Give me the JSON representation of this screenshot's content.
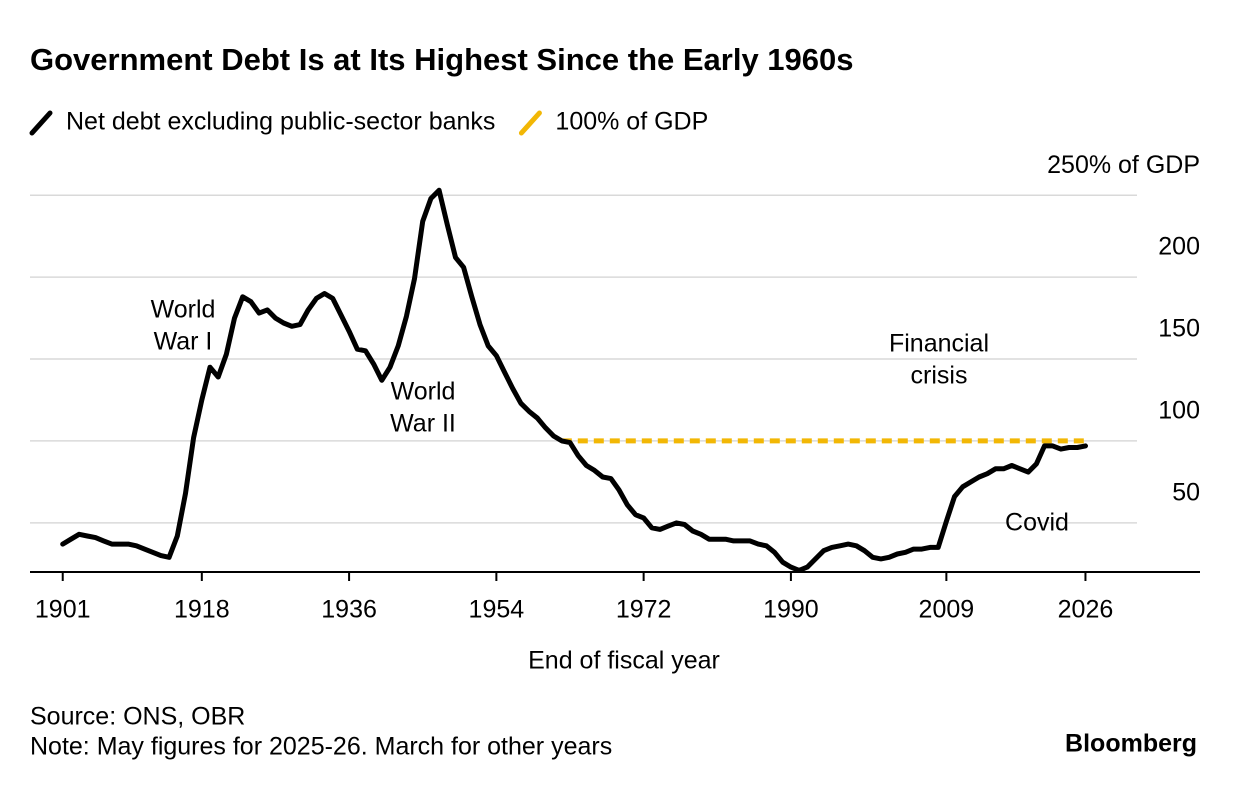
{
  "chart_data": {
    "type": "line",
    "title": "Government Debt Is at Its Highest Since the Early 1960s",
    "x_label": "End of fiscal year",
    "source": "Source: ONS, OBR",
    "note": "Note: May figures for 2025-26. March for other years",
    "brand": "Bloomberg",
    "series": [
      {
        "name": "Net debt excluding public-sector banks",
        "color": "#000000",
        "dashed": false,
        "x": [
          1901,
          1902,
          1903,
          1904,
          1905,
          1906,
          1907,
          1908,
          1909,
          1910,
          1911,
          1912,
          1913,
          1914,
          1915,
          1916,
          1917,
          1918,
          1919,
          1920,
          1921,
          1922,
          1923,
          1924,
          1925,
          1926,
          1927,
          1928,
          1929,
          1930,
          1931,
          1932,
          1933,
          1934,
          1935,
          1936,
          1937,
          1938,
          1939,
          1940,
          1941,
          1942,
          1943,
          1944,
          1945,
          1946,
          1947,
          1948,
          1949,
          1950,
          1951,
          1952,
          1953,
          1954,
          1955,
          1956,
          1957,
          1958,
          1959,
          1960,
          1961,
          1962,
          1963,
          1964,
          1965,
          1966,
          1967,
          1968,
          1969,
          1970,
          1971,
          1972,
          1973,
          1974,
          1975,
          1976,
          1977,
          1978,
          1979,
          1980,
          1981,
          1982,
          1983,
          1984,
          1985,
          1986,
          1987,
          1988,
          1989,
          1990,
          1991,
          1992,
          1993,
          1994,
          1995,
          1996,
          1997,
          1998,
          1999,
          2000,
          2001,
          2002,
          2003,
          2004,
          2005,
          2006,
          2007,
          2008,
          2009,
          2010,
          2011,
          2012,
          2013,
          2014,
          2015,
          2016,
          2017,
          2018,
          2019,
          2020,
          2021,
          2022,
          2023,
          2024,
          2025,
          2026
        ],
        "values": [
          37,
          40,
          43,
          42,
          41,
          39,
          37,
          37,
          37,
          36,
          34,
          32,
          30,
          29,
          42,
          68,
          102,
          125,
          145,
          139,
          153,
          175,
          188,
          185,
          178,
          180,
          175,
          172,
          170,
          171,
          180,
          187,
          190,
          187,
          177,
          167,
          156,
          155,
          147,
          137,
          145,
          158,
          176,
          199,
          234,
          248,
          253,
          232,
          212,
          206,
          188,
          171,
          158,
          152,
          142,
          132,
          123,
          118,
          114,
          108,
          103,
          100,
          99,
          91,
          85,
          82,
          78,
          77,
          70,
          61,
          55,
          53,
          47,
          46,
          48,
          50,
          49,
          45,
          43,
          40,
          40,
          40,
          39,
          39,
          39,
          37,
          36,
          32,
          26,
          23,
          21,
          23,
          28,
          33,
          35,
          36,
          37,
          36,
          33,
          29,
          28,
          29,
          31,
          32,
          34,
          34,
          35,
          35,
          51,
          66,
          72,
          75,
          78,
          80,
          83,
          83,
          85,
          83,
          81,
          86,
          97,
          97,
          95,
          96,
          96,
          97
        ]
      },
      {
        "name": "100% of GDP",
        "color": "#f2b705",
        "dashed": true,
        "x": [
          1962,
          2026
        ],
        "values": [
          100,
          100
        ]
      }
    ],
    "xlim": [
      1897,
      2040
    ],
    "xticks": [
      1901,
      1918,
      1936,
      1954,
      1972,
      1990,
      2009,
      2026
    ],
    "ylim": [
      20,
      255
    ],
    "yticks": [
      50,
      100,
      150,
      200,
      {
        "value": 250,
        "label": "250% of GDP"
      }
    ],
    "grid": true,
    "annotations": [
      {
        "lines": [
          "World",
          "War I"
        ]
      },
      {
        "lines": [
          "World",
          "War II"
        ]
      },
      {
        "lines": [
          "Financial",
          "crisis"
        ]
      },
      {
        "lines": [
          "Covid"
        ]
      }
    ]
  }
}
